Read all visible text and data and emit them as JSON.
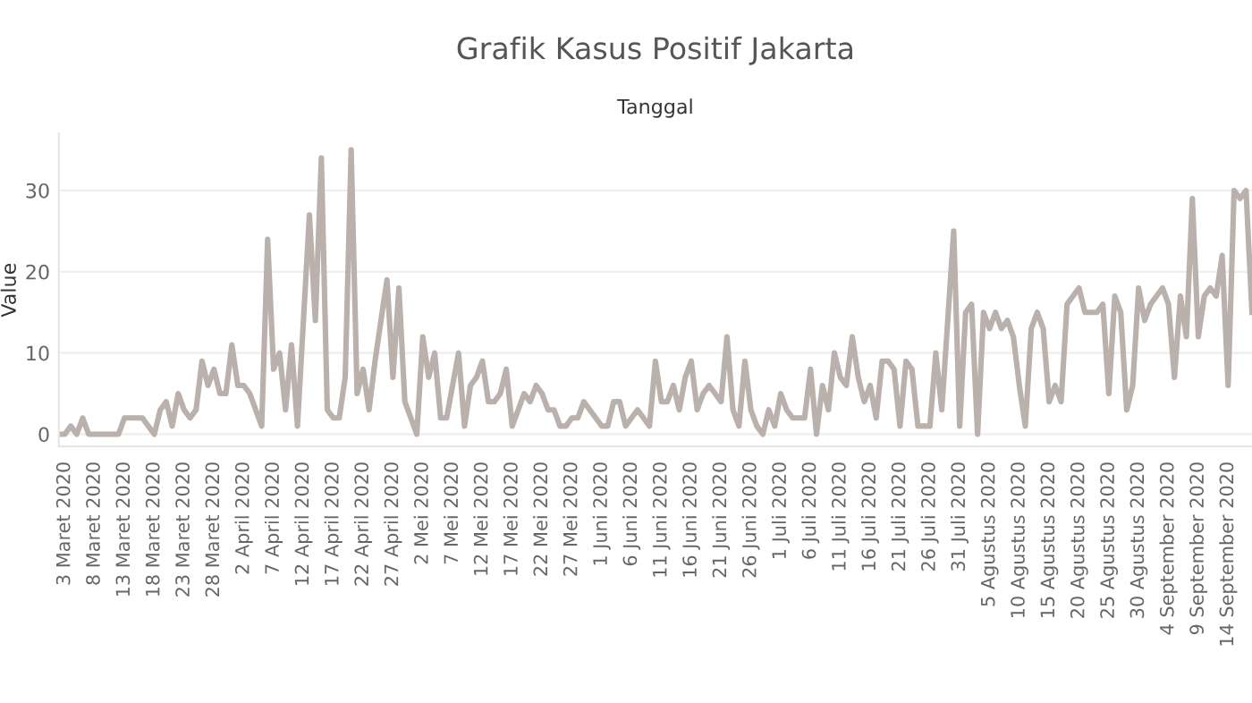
{
  "chart_data": {
    "type": "line",
    "title": "Grafik Kasus Positif Jakarta",
    "xlabel": "Tanggal",
    "ylabel": "Value",
    "x": [
      "2020-03-02",
      "2020-03-03",
      "2020-03-04",
      "2020-03-05",
      "2020-03-06",
      "2020-03-07",
      "2020-03-08",
      "2020-03-09",
      "2020-03-10",
      "2020-03-11",
      "2020-03-12",
      "2020-03-13",
      "2020-03-14",
      "2020-03-15",
      "2020-03-16",
      "2020-03-17",
      "2020-03-18",
      "2020-03-19",
      "2020-03-20",
      "2020-03-21",
      "2020-03-22",
      "2020-03-23",
      "2020-03-24",
      "2020-03-25",
      "2020-03-26",
      "2020-03-27",
      "2020-03-28",
      "2020-03-29",
      "2020-03-30",
      "2020-03-31",
      "2020-04-01",
      "2020-04-02",
      "2020-04-03",
      "2020-04-04",
      "2020-04-05",
      "2020-04-06",
      "2020-04-07",
      "2020-04-08",
      "2020-04-09",
      "2020-04-10",
      "2020-04-11",
      "2020-04-12",
      "2020-04-13",
      "2020-04-14",
      "2020-04-15",
      "2020-04-16",
      "2020-04-17",
      "2020-04-18",
      "2020-04-19",
      "2020-04-20",
      "2020-04-21",
      "2020-04-22",
      "2020-04-23",
      "2020-04-24",
      "2020-04-25",
      "2020-04-26",
      "2020-04-27",
      "2020-04-28",
      "2020-04-29",
      "2020-04-30",
      "2020-05-01",
      "2020-05-02",
      "2020-05-03",
      "2020-05-04",
      "2020-05-05",
      "2020-05-06",
      "2020-05-07",
      "2020-05-08",
      "2020-05-09",
      "2020-05-10",
      "2020-05-11",
      "2020-05-12",
      "2020-05-13",
      "2020-05-14",
      "2020-05-15",
      "2020-05-16",
      "2020-05-17",
      "2020-05-18",
      "2020-05-19",
      "2020-05-20",
      "2020-05-21",
      "2020-05-22",
      "2020-05-23",
      "2020-05-24",
      "2020-05-25",
      "2020-05-26",
      "2020-05-27",
      "2020-05-28",
      "2020-05-29",
      "2020-05-30",
      "2020-05-31",
      "2020-06-01",
      "2020-06-02",
      "2020-06-03",
      "2020-06-04",
      "2020-06-05",
      "2020-06-06",
      "2020-06-07",
      "2020-06-08",
      "2020-06-09",
      "2020-06-10",
      "2020-06-11",
      "2020-06-12",
      "2020-06-13",
      "2020-06-14",
      "2020-06-15",
      "2020-06-16",
      "2020-06-17",
      "2020-06-18",
      "2020-06-19",
      "2020-06-20",
      "2020-06-21",
      "2020-06-22",
      "2020-06-23",
      "2020-06-24",
      "2020-06-25",
      "2020-06-26",
      "2020-06-27",
      "2020-06-28",
      "2020-06-29",
      "2020-06-30",
      "2020-07-01",
      "2020-07-02",
      "2020-07-03",
      "2020-07-04",
      "2020-07-05",
      "2020-07-06",
      "2020-07-07",
      "2020-07-08",
      "2020-07-09",
      "2020-07-10",
      "2020-07-11",
      "2020-07-12",
      "2020-07-13",
      "2020-07-14",
      "2020-07-15",
      "2020-07-16",
      "2020-07-17",
      "2020-07-18",
      "2020-07-19",
      "2020-07-20",
      "2020-07-21",
      "2020-07-22",
      "2020-07-23",
      "2020-07-24",
      "2020-07-25",
      "2020-07-26",
      "2020-07-27",
      "2020-07-28",
      "2020-07-29",
      "2020-07-30",
      "2020-07-31",
      "2020-08-01",
      "2020-08-02",
      "2020-08-03",
      "2020-08-04",
      "2020-08-05",
      "2020-08-06",
      "2020-08-07",
      "2020-08-08",
      "2020-08-09",
      "2020-08-10",
      "2020-08-11",
      "2020-08-12",
      "2020-08-13",
      "2020-08-14",
      "2020-08-15",
      "2020-08-16",
      "2020-08-17",
      "2020-08-18",
      "2020-08-19",
      "2020-08-20",
      "2020-08-21",
      "2020-08-22",
      "2020-08-23",
      "2020-08-24",
      "2020-08-25",
      "2020-08-26",
      "2020-08-27",
      "2020-08-28",
      "2020-08-29",
      "2020-08-30",
      "2020-08-31",
      "2020-09-01",
      "2020-09-02",
      "2020-09-03",
      "2020-09-04",
      "2020-09-05",
      "2020-09-06",
      "2020-09-07",
      "2020-09-08",
      "2020-09-09",
      "2020-09-10",
      "2020-09-11",
      "2020-09-12",
      "2020-09-13",
      "2020-09-14",
      "2020-09-15",
      "2020-09-16",
      "2020-09-17",
      "2020-09-18"
    ],
    "series": [
      {
        "color": "#bab0ac",
        "values": [
          0,
          0,
          1,
          0,
          2,
          0,
          0,
          0,
          0,
          0,
          0,
          2,
          2,
          2,
          2,
          1,
          0,
          3,
          4,
          1,
          5,
          3,
          2,
          3,
          9,
          6,
          8,
          5,
          5,
          11,
          6,
          6,
          5,
          3,
          1,
          24,
          8,
          10,
          3,
          11,
          1,
          14,
          27,
          14,
          34,
          3,
          2,
          2,
          7,
          35,
          5,
          8,
          3,
          9,
          14,
          19,
          7,
          18,
          4,
          2,
          0,
          12,
          7,
          10,
          2,
          2,
          6,
          10,
          1,
          6,
          7,
          9,
          4,
          4,
          5,
          8,
          1,
          3,
          5,
          4,
          6,
          5,
          3,
          3,
          1,
          1,
          2,
          2,
          4,
          3,
          2,
          1,
          1,
          4,
          4,
          1,
          2,
          3,
          2,
          1,
          9,
          4,
          4,
          6,
          3,
          7,
          9,
          3,
          5,
          6,
          5,
          4,
          12,
          3,
          1,
          9,
          3,
          1,
          0,
          3,
          1,
          5,
          3,
          2,
          2,
          2,
          8,
          0,
          6,
          3,
          10,
          7,
          6,
          12,
          7,
          4,
          6,
          2,
          9,
          9,
          8,
          1,
          9,
          8,
          1,
          1,
          1,
          10,
          3,
          14,
          25,
          1,
          15,
          16,
          0,
          15,
          13,
          15,
          13,
          14,
          12,
          6,
          1,
          13,
          15,
          13,
          4,
          6,
          4,
          16,
          17,
          18,
          15,
          15,
          15,
          16,
          5,
          17,
          15,
          3,
          6,
          18,
          14,
          16,
          17,
          18,
          16,
          7,
          17,
          12,
          29,
          12,
          17,
          18,
          17,
          22,
          6,
          30,
          29,
          30,
          15
        ]
      }
    ],
    "xlim": [
      "2020-03-02",
      "2020-09-18"
    ],
    "xticks": [
      {
        "value": "2020-03-03",
        "label": "3 Maret 2020"
      },
      {
        "value": "2020-03-08",
        "label": "8 Maret 2020"
      },
      {
        "value": "2020-03-13",
        "label": "13 Maret 2020"
      },
      {
        "value": "2020-03-18",
        "label": "18 Maret 2020"
      },
      {
        "value": "2020-03-23",
        "label": "23 Maret 2020"
      },
      {
        "value": "2020-03-28",
        "label": "28 Maret 2020"
      },
      {
        "value": "2020-04-02",
        "label": "2 April 2020"
      },
      {
        "value": "2020-04-07",
        "label": "7 April 2020"
      },
      {
        "value": "2020-04-12",
        "label": "12 April 2020"
      },
      {
        "value": "2020-04-17",
        "label": "17 April 2020"
      },
      {
        "value": "2020-04-22",
        "label": "22 April 2020"
      },
      {
        "value": "2020-04-27",
        "label": "27 April 2020"
      },
      {
        "value": "2020-05-02",
        "label": "2 Mei 2020"
      },
      {
        "value": "2020-05-07",
        "label": "7 Mei 2020"
      },
      {
        "value": "2020-05-12",
        "label": "12 Mei 2020"
      },
      {
        "value": "2020-05-17",
        "label": "17 Mei 2020"
      },
      {
        "value": "2020-05-22",
        "label": "22 Mei 2020"
      },
      {
        "value": "2020-05-27",
        "label": "27 Mei 2020"
      },
      {
        "value": "2020-06-01",
        "label": "1 Juni 2020"
      },
      {
        "value": "2020-06-06",
        "label": "6 Juni 2020"
      },
      {
        "value": "2020-06-11",
        "label": "11 Juni 2020"
      },
      {
        "value": "2020-06-16",
        "label": "16 Juni 2020"
      },
      {
        "value": "2020-06-21",
        "label": "21 Juni 2020"
      },
      {
        "value": "2020-06-26",
        "label": "26 Juni 2020"
      },
      {
        "value": "2020-07-01",
        "label": "1 Juli 2020"
      },
      {
        "value": "2020-07-06",
        "label": "6 Juli 2020"
      },
      {
        "value": "2020-07-11",
        "label": "11 Juli 2020"
      },
      {
        "value": "2020-07-16",
        "label": "16 Juli 2020"
      },
      {
        "value": "2020-07-21",
        "label": "21 Juli 2020"
      },
      {
        "value": "2020-07-26",
        "label": "26 Juli 2020"
      },
      {
        "value": "2020-07-31",
        "label": "31 Juli 2020"
      },
      {
        "value": "2020-08-05",
        "label": "5 Agustus 2020"
      },
      {
        "value": "2020-08-10",
        "label": "10 Agustus 2020"
      },
      {
        "value": "2020-08-15",
        "label": "15 Agustus 2020"
      },
      {
        "value": "2020-08-20",
        "label": "20 Agustus 2020"
      },
      {
        "value": "2020-08-25",
        "label": "25 Agustus 2020"
      },
      {
        "value": "2020-08-30",
        "label": "30 Agustus 2020"
      },
      {
        "value": "2020-09-04",
        "label": "4 September 2020"
      },
      {
        "value": "2020-09-09",
        "label": "9 September 2020"
      },
      {
        "value": "2020-09-14",
        "label": "14 September 2020"
      }
    ],
    "ylim": [
      -1.5,
      37
    ],
    "yticks": [
      0,
      10,
      20,
      30
    ],
    "grid": "y",
    "legend": false,
    "marker": "none",
    "line_style": "solid"
  }
}
